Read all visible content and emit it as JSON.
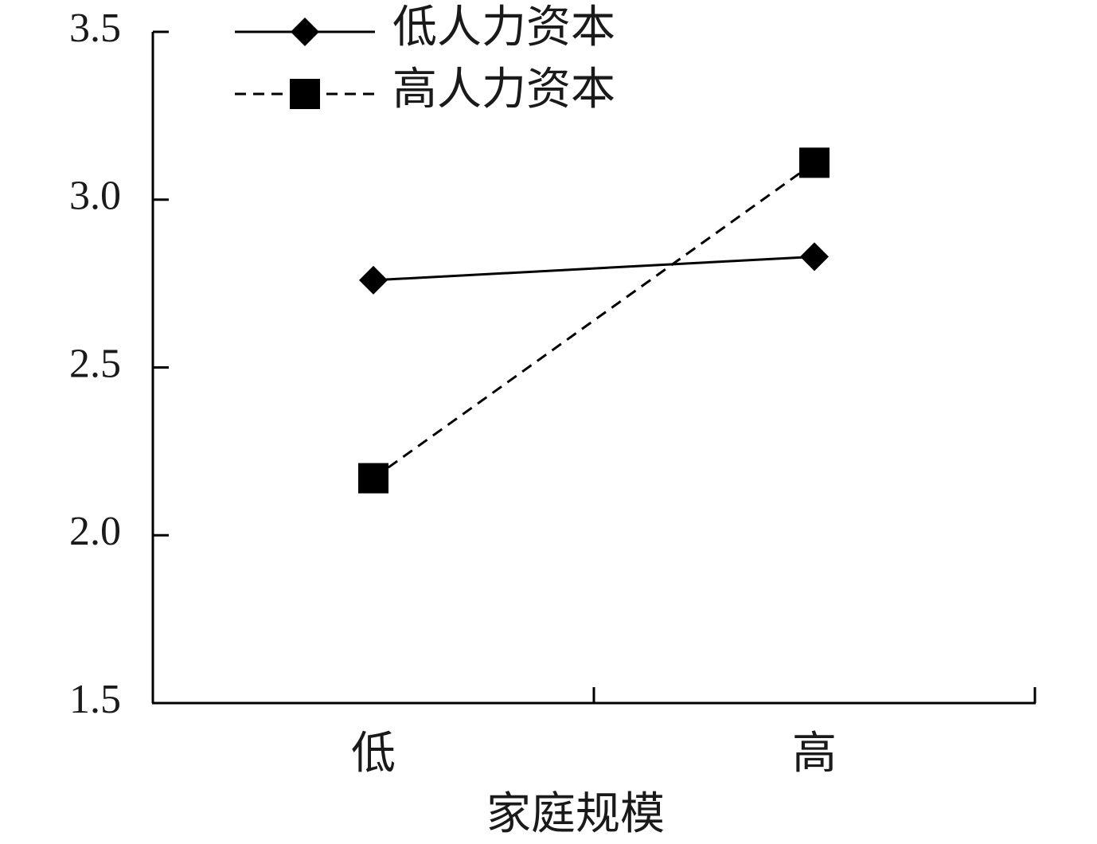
{
  "chart_data": {
    "type": "line",
    "xlabel": "家庭规模",
    "categories": [
      "低",
      "高"
    ],
    "series": [
      {
        "name": "低人力资本",
        "color": "#000000",
        "linestyle": "solid",
        "marker": "diamond",
        "values": [
          2.76,
          2.83
        ]
      },
      {
        "name": "高人力资本",
        "color": "#000000",
        "linestyle": "dashed",
        "marker": "square",
        "values": [
          2.17,
          3.11
        ]
      }
    ],
    "ylim": [
      1.5,
      3.5
    ],
    "yticks": [
      1.5,
      {
        "value": 2,
        "label": "2.0"
      },
      2.5,
      {
        "value": 3,
        "label": "3.0"
      },
      3.5
    ],
    "grid": false,
    "legend": "upper left"
  }
}
